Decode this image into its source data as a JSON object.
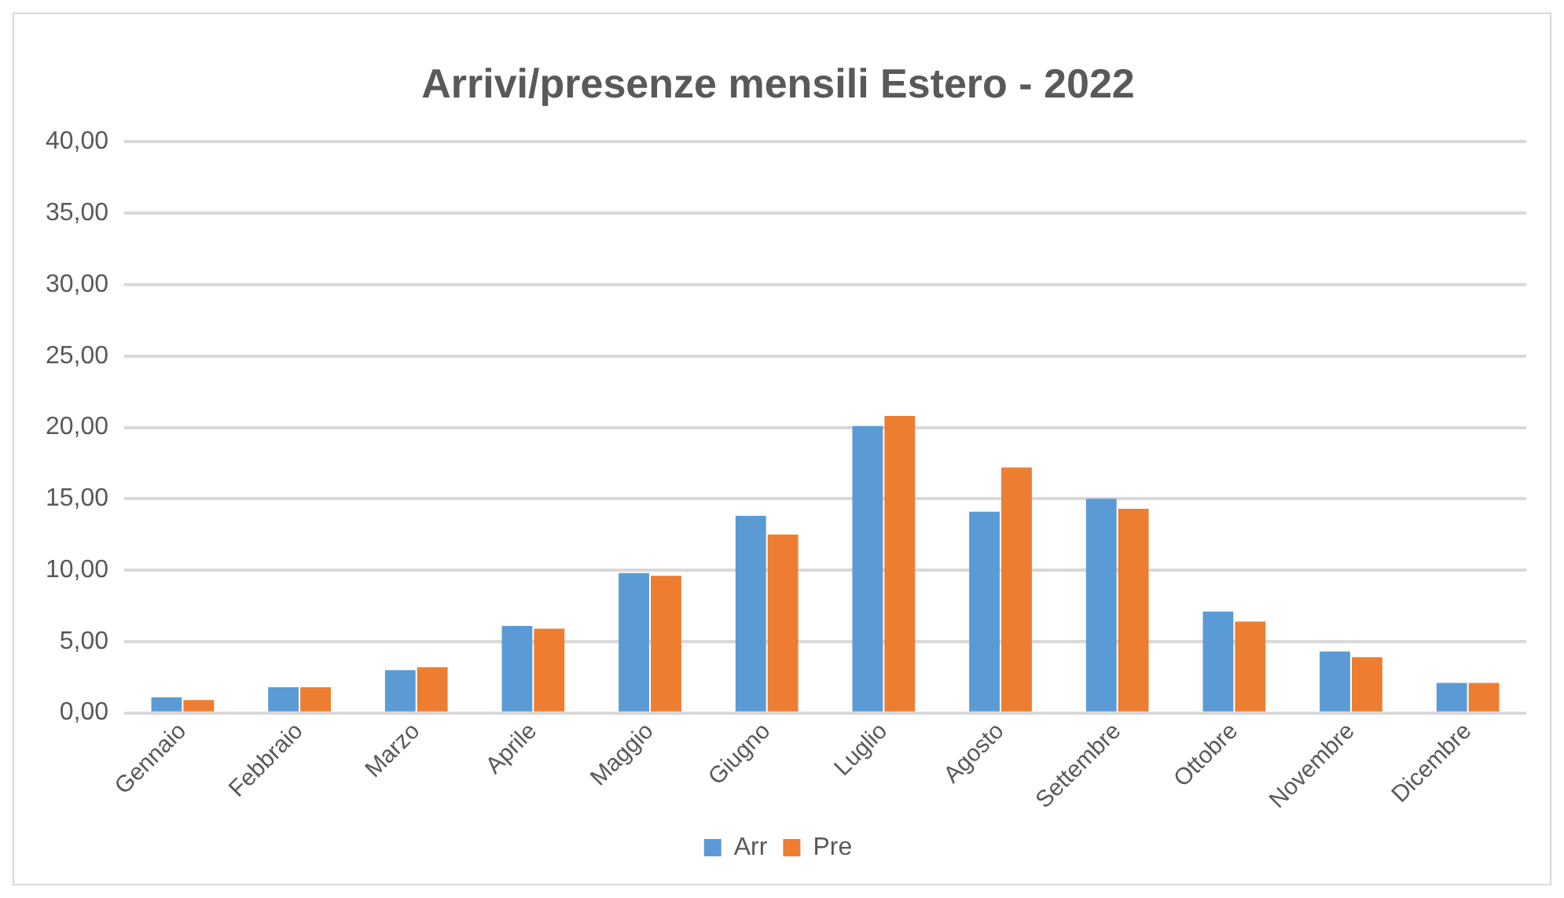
{
  "chart_data": {
    "type": "bar",
    "title": "Arrivi/presenze mensili Estero - 2022",
    "categories": [
      "Gennaio",
      "Febbraio",
      "Marzo",
      "Aprile",
      "Maggio",
      "Giugno",
      "Luglio",
      "Agosto",
      "Settembre",
      "Ottobre",
      "Novembre",
      "Dicembre"
    ],
    "series": [
      {
        "name": "Arr",
        "color": "#5b9bd5",
        "values": [
          1.1,
          1.8,
          3.0,
          6.1,
          9.8,
          13.8,
          20.1,
          14.1,
          15.0,
          7.1,
          4.3,
          2.1
        ]
      },
      {
        "name": "Pre",
        "color": "#ed7d31",
        "values": [
          0.9,
          1.8,
          3.2,
          5.9,
          9.6,
          12.5,
          20.8,
          17.2,
          14.3,
          6.4,
          3.9,
          2.1
        ]
      }
    ],
    "ylim": [
      0,
      40
    ],
    "yticks": [
      {
        "value": 0,
        "label": "0,00"
      },
      {
        "value": 5,
        "label": "5,00"
      },
      {
        "value": 10,
        "label": "10,00"
      },
      {
        "value": 15,
        "label": "15,00"
      },
      {
        "value": 20,
        "label": "20,00"
      },
      {
        "value": 25,
        "label": "25,00"
      },
      {
        "value": 30,
        "label": "30,00"
      },
      {
        "value": 35,
        "label": "35,00"
      },
      {
        "value": 40,
        "label": "40,00"
      }
    ],
    "grid": "y",
    "legend": "bottom"
  }
}
